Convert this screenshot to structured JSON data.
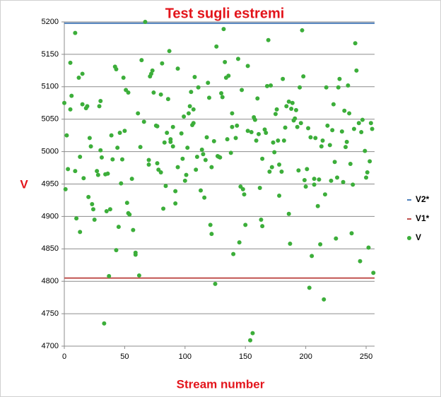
{
  "chart_data": {
    "type": "scatter",
    "title": "Test sugli estremi",
    "x_label": "Stream number",
    "y_label": "V",
    "xlim": [
      0,
      257
    ],
    "xticks": [
      0,
      50,
      100,
      150,
      200,
      250
    ],
    "ylim": [
      4700,
      5200
    ],
    "yticks": [
      4700,
      4750,
      4800,
      4850,
      4900,
      4950,
      5000,
      5050,
      5100,
      5150,
      5200
    ],
    "grid": true,
    "legend": "right",
    "series": [
      {
        "name": "V2*",
        "color": "#4f81bd",
        "line": true,
        "x": [
          0,
          257
        ],
        "values": [
          5198,
          5198
        ]
      },
      {
        "name": "V1*",
        "color": "#c0504d",
        "line": true,
        "x": [
          0,
          257
        ],
        "values": [
          4805,
          4805
        ]
      },
      {
        "name": "V",
        "color": "#3cae3a",
        "line": false,
        "x": [
          0,
          1,
          2,
          3,
          5,
          5,
          6,
          9,
          9,
          10,
          12,
          13,
          13,
          15,
          15,
          16,
          18,
          19,
          20,
          21,
          22,
          23,
          24,
          25,
          27,
          28,
          29,
          30,
          30,
          31,
          33,
          34,
          35,
          36,
          37,
          38,
          39,
          40,
          42,
          43,
          43,
          44,
          45,
          46,
          47,
          48,
          49,
          50,
          51,
          52,
          53,
          53,
          54,
          56,
          57,
          59,
          59,
          61,
          62,
          63,
          64,
          66,
          67,
          70,
          70,
          71,
          72,
          73,
          74,
          76,
          77,
          77,
          78,
          80,
          80,
          81,
          82,
          83,
          84,
          85,
          86,
          87,
          88,
          88,
          90,
          90,
          92,
          92,
          94,
          94,
          97,
          98,
          99,
          100,
          101,
          102,
          103,
          104,
          105,
          106,
          107,
          107,
          108,
          109,
          110,
          111,
          113,
          114,
          115,
          116,
          117,
          118,
          119,
          120,
          121,
          122,
          122,
          124,
          125,
          126,
          127,
          128,
          129,
          130,
          131,
          132,
          133,
          134,
          135,
          136,
          138,
          139,
          139,
          140,
          142,
          143,
          144,
          145,
          146,
          147,
          148,
          149,
          150,
          152,
          152,
          154,
          155,
          156,
          157,
          158,
          159,
          160,
          161,
          162,
          163,
          164,
          164,
          166,
          167,
          168,
          169,
          170,
          171,
          172,
          173,
          174,
          175,
          176,
          177,
          178,
          178,
          180,
          181,
          182,
          183,
          184,
          186,
          186,
          187,
          188,
          189,
          190,
          191,
          192,
          193,
          194,
          195,
          196,
          197,
          198,
          199,
          200,
          201,
          202,
          203,
          204,
          205,
          207,
          207,
          208,
          210,
          211,
          212,
          213,
          214,
          215,
          216,
          217,
          218,
          220,
          221,
          222,
          223,
          224,
          225,
          226,
          227,
          228,
          230,
          231,
          232,
          233,
          234,
          235,
          236,
          237,
          238,
          239,
          240,
          241,
          242,
          244,
          245,
          246,
          247,
          249,
          250,
          251,
          252,
          253,
          254,
          255,
          256
        ],
        "values": [
          5075,
          4942,
          5025,
          4973,
          5065,
          5137,
          5086,
          4970,
          5183,
          4897,
          5114,
          4992,
          4876,
          5120,
          5073,
          4959,
          5067,
          5070,
          4930,
          5021,
          5008,
          4919,
          4911,
          4895,
          4970,
          4964,
          5070,
          5002,
          5078,
          4991,
          4735,
          4965,
          4908,
          4966,
          4808,
          4911,
          5025,
          4988,
          5131,
          4848,
          5127,
          5006,
          4884,
          5029,
          4951,
          4988,
          5114,
          5032,
          5095,
          4921,
          5091,
          4905,
          4903,
          4958,
          4879,
          4844,
          4841,
          5059,
          4809,
          5007,
          5141,
          5046,
          5200,
          4987,
          4980,
          5116,
          5120,
          5125,
          5091,
          5040,
          4982,
          5039,
          4972,
          5088,
          4968,
          5136,
          4912,
          5014,
          4947,
          5029,
          5081,
          5155,
          5019,
          5015,
          5008,
          5038,
          4920,
          4939,
          4976,
          5128,
          5028,
          4989,
          5054,
          4955,
          4964,
          5006,
          5059,
          5070,
          5092,
          5041,
          5065,
          5044,
          5115,
          4972,
          4992,
          5099,
          4940,
          5003,
          4996,
          4929,
          4987,
          5022,
          5106,
          5083,
          4887,
          4873,
          4976,
          5016,
          4796,
          5162,
          4993,
          4992,
          4991,
          5090,
          5084,
          5189,
          5138,
          5114,
          5019,
          5117,
          4998,
          5059,
          5038,
          4842,
          5021,
          5040,
          5143,
          4860,
          4946,
          5095,
          4942,
          4934,
          4887,
          5032,
          5132,
          4709,
          5030,
          4720,
          5053,
          5049,
          5017,
          5082,
          5027,
          4944,
          4895,
          4885,
          4989,
          5034,
          5029,
          5101,
          5172,
          4969,
          5102,
          4976,
          5014,
          4999,
          5058,
          5065,
          5017,
          4980,
          4932,
          4969,
          5112,
          5017,
          5037,
          5070,
          5077,
          4904,
          4858,
          5066,
          5075,
          5048,
          5051,
          5064,
          5038,
          4971,
          5099,
          5044,
          5187,
          5116,
          4956,
          4946,
          4973,
          5036,
          4790,
          5022,
          4839,
          4949,
          4958,
          5021,
          4916,
          4957,
          4857,
          5008,
          5017,
          4772,
          4934,
          5099,
          5040,
          5010,
          4955,
          5033,
          5073,
          4984,
          4866,
          4960,
          5099,
          5112,
          5031,
          4953,
          5063,
          5007,
          5015,
          5102,
          5059,
          4981,
          4874,
          4949,
          5035,
          5167,
          5125,
          5044,
          4831,
          5030,
          5049,
          5001,
          4960,
          4968,
          4852,
          4985,
          5044,
          5035,
          4813
        ]
      }
    ]
  }
}
